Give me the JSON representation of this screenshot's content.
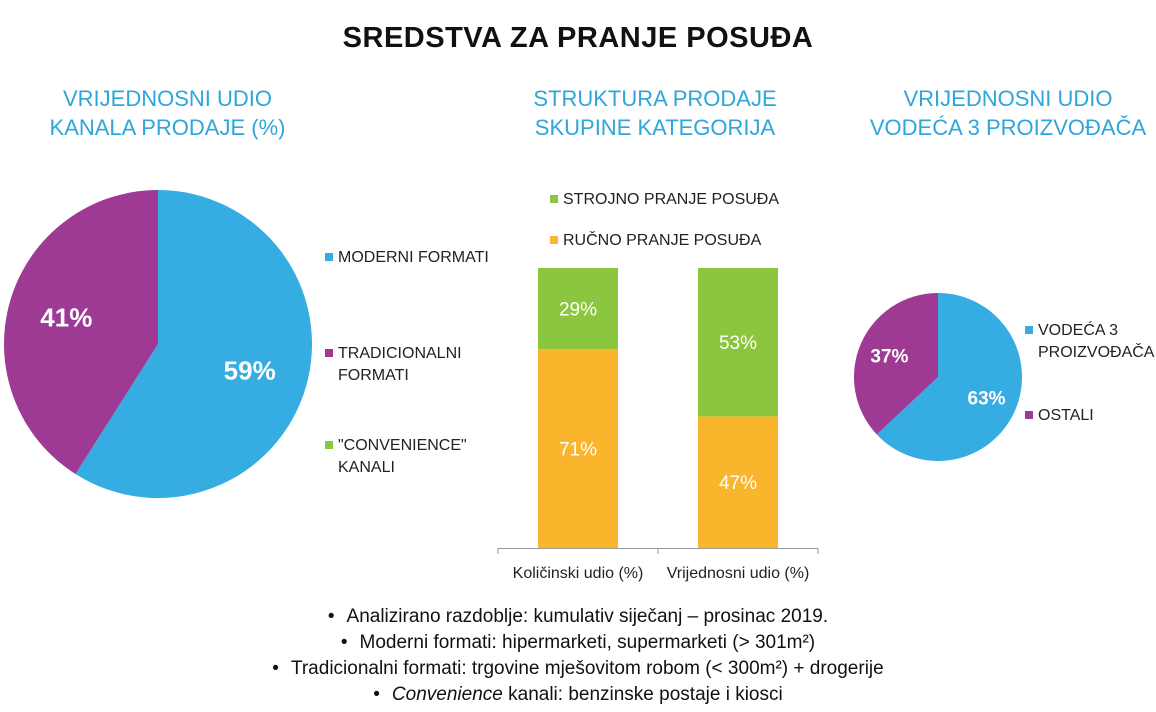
{
  "title": "SREDSTVA ZA PRANJE POSUĐA",
  "colors": {
    "blue": "#35ACE2",
    "purple": "#9E3A94",
    "green": "#8CC63F",
    "orange": "#F9B52B",
    "title_blue": "#2EA6DB"
  },
  "chart_data": [
    {
      "type": "pie",
      "title": [
        "VRIJEDNOSNI UDIO",
        "KANALA PRODAJE (%)"
      ],
      "slices": [
        {
          "label": "MODERNI FORMATI",
          "value": 59,
          "display": "59%",
          "color": "#35ACE2"
        },
        {
          "label": "TRADICIONALNI FORMATI",
          "value": 41,
          "display": "41%",
          "color": "#9E3A94"
        },
        {
          "label": "\"CONVENIENCE\" KANALI",
          "value": 0,
          "display": "",
          "color": "#8CC63F"
        }
      ],
      "legend": [
        {
          "lines": [
            "MODERNI FORMATI"
          ],
          "color": "#35ACE2"
        },
        {
          "lines": [
            "TRADICIONALNI",
            "FORMATI"
          ],
          "color": "#9E3A94"
        },
        {
          "lines": [
            "\"CONVENIENCE\"",
            "KANALI"
          ],
          "color": "#8CC63F"
        }
      ],
      "legend_position": "right"
    },
    {
      "type": "bar",
      "stacked": true,
      "title": [
        "STRUKTURA PRODAJE",
        "SKUPINE KATEGORIJA"
      ],
      "categories": [
        "Količinski udio (%)",
        "Vrijednosni udio (%)"
      ],
      "series": [
        {
          "name": "RUČNO PRANJE POSUĐA",
          "values": [
            71,
            47
          ],
          "labels": [
            "71%",
            "47%"
          ],
          "color": "#F9B52B"
        },
        {
          "name": "STROJNO PRANJE POSUĐA",
          "values": [
            29,
            53
          ],
          "labels": [
            "29%",
            "53%"
          ],
          "color": "#8CC63F"
        }
      ],
      "ylim": [
        0,
        100
      ],
      "legend_position": "top"
    },
    {
      "type": "pie",
      "title": [
        "VRIJEDNOSNI UDIO",
        "VODEĆA 3 PROIZVOĐAČA"
      ],
      "slices": [
        {
          "label": "VODEĆA 3 PROIZVOĐAČA",
          "value": 63,
          "display": "63%",
          "color": "#35ACE2"
        },
        {
          "label": "OSTALI",
          "value": 37,
          "display": "37%",
          "color": "#9E3A94"
        }
      ],
      "legend": [
        {
          "lines": [
            "VODEĆA  3",
            "PROIZVOĐAČA"
          ],
          "color": "#35ACE2"
        },
        {
          "lines": [
            "OSTALI"
          ],
          "color": "#9E3A94"
        }
      ],
      "legend_position": "right"
    }
  ],
  "notes": [
    {
      "bullet": "•",
      "em": "",
      "text": "Analizirano razdoblje: kumulativ siječanj – prosinac 2019."
    },
    {
      "bullet": "•",
      "em": "",
      "text": "Moderni formati: hipermarketi, supermarketi (> 301m²)"
    },
    {
      "bullet": "•",
      "em": "",
      "text": "Tradicionalni formati: trgovine mješovitom robom (< 300m²) + drogerije"
    },
    {
      "bullet": "•",
      "em": "Convenience",
      "text": " kanali: benzinske postaje i kiosci"
    }
  ]
}
